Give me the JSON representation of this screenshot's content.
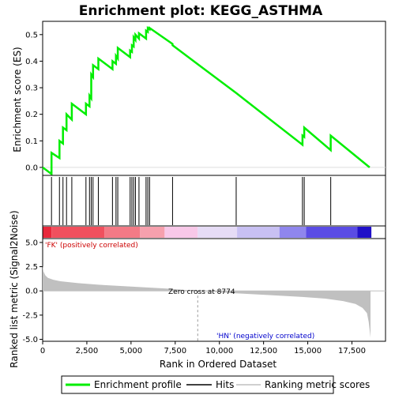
{
  "chart_data": {
    "type": "line",
    "title": "Enrichment plot: KEGG_ASTHMA",
    "top_panel": {
      "ylabel": "Enrichment score (ES)",
      "ylim": [
        -0.03,
        0.55
      ],
      "yticks": [
        0.0,
        0.1,
        0.2,
        0.3,
        0.4,
        0.5
      ],
      "ytick_labels": [
        "0.0",
        "0.1",
        "0.2",
        "0.3",
        "0.4",
        "0.5"
      ],
      "series_color": "#00ee00",
      "x": [
        0,
        500,
        500,
        950,
        950,
        1150,
        1150,
        1350,
        1350,
        1650,
        1650,
        2450,
        2450,
        2650,
        2650,
        2750,
        2750,
        2850,
        2850,
        3150,
        3150,
        3950,
        3950,
        4150,
        4150,
        4250,
        4250,
        4950,
        4950,
        5050,
        5050,
        5150,
        5150,
        5250,
        5250,
        5450,
        5450,
        5850,
        5850,
        5950,
        5950,
        6050,
        6050,
        7350,
        7350,
        10950,
        10950,
        14700,
        14700,
        14800,
        14800,
        16300,
        16300,
        18500
      ],
      "y": [
        0.0,
        -0.025,
        0.055,
        0.035,
        0.1,
        0.09,
        0.15,
        0.14,
        0.2,
        0.18,
        0.24,
        0.2,
        0.24,
        0.23,
        0.27,
        0.26,
        0.35,
        0.34,
        0.385,
        0.37,
        0.41,
        0.37,
        0.4,
        0.39,
        0.42,
        0.41,
        0.45,
        0.415,
        0.44,
        0.435,
        0.46,
        0.455,
        0.49,
        0.48,
        0.5,
        0.485,
        0.505,
        0.485,
        0.515,
        0.51,
        0.525,
        0.52,
        0.525,
        0.465,
        0.46,
        0.28,
        0.28,
        0.085,
        0.12,
        0.115,
        0.15,
        0.065,
        0.12,
        0.0
      ]
    },
    "hits": [
      500,
      950,
      1150,
      1350,
      1650,
      2450,
      2650,
      2750,
      2850,
      3150,
      3950,
      4150,
      4250,
      4950,
      5050,
      5150,
      5250,
      5450,
      5850,
      5950,
      6050,
      7350,
      10950,
      14700,
      14800,
      16300
    ],
    "heatmap_bar": {
      "pos_label": "'FK' (positively correlated)",
      "neg_label": "'HN' (negatively correlated)",
      "pos_color": "#cc0000",
      "neg_color": "#0000cc",
      "segments": [
        {
          "from": 0,
          "to": 500,
          "color": "#e8283b"
        },
        {
          "from": 500,
          "to": 3500,
          "color": "#f0505e"
        },
        {
          "from": 3500,
          "to": 5500,
          "color": "#f37a86"
        },
        {
          "from": 5500,
          "to": 6900,
          "color": "#f6a0ad"
        },
        {
          "from": 6900,
          "to": 8774,
          "color": "#f8c8e8"
        },
        {
          "from": 8774,
          "to": 11000,
          "color": "#e6dcf6"
        },
        {
          "from": 11000,
          "to": 13400,
          "color": "#c8c0f3"
        },
        {
          "from": 13400,
          "to": 14900,
          "color": "#8f86ed"
        },
        {
          "from": 14900,
          "to": 17800,
          "color": "#5a4ce4"
        },
        {
          "from": 17800,
          "to": 18600,
          "color": "#2010c8"
        }
      ]
    },
    "bottom_panel": {
      "ylabel": "Ranked list metric (Signal2Noise)",
      "ylim": [
        -5.2,
        5.4
      ],
      "yticks": [
        -5.0,
        -2.5,
        0.0,
        2.5,
        5.0
      ],
      "ytick_labels": [
        "-5.0",
        "-2.5",
        "0.0",
        "2.5",
        "5.0"
      ],
      "zero_cross_label": "Zero cross at 8774",
      "zero_cross": 8774,
      "metric_x": [
        0,
        50,
        150,
        300,
        600,
        1000,
        2000,
        3500,
        5000,
        7000,
        8774,
        10500,
        12500,
        14500,
        16000,
        17000,
        17700,
        18100,
        18350,
        18450,
        18550
      ],
      "metric_y": [
        2.6,
        2.0,
        1.6,
        1.35,
        1.15,
        1.0,
        0.8,
        0.6,
        0.45,
        0.25,
        0.0,
        -0.2,
        -0.4,
        -0.6,
        -0.8,
        -1.05,
        -1.35,
        -1.75,
        -2.3,
        -3.2,
        -4.8
      ]
    },
    "xaxis": {
      "xlabel": "Rank in Ordered Dataset",
      "xlim": [
        0,
        19400
      ],
      "xticks": [
        0,
        2500,
        5000,
        7500,
        10000,
        12500,
        15000,
        17500
      ],
      "xtick_labels": [
        "0",
        "2,500",
        "5,000",
        "7,500",
        "10,000",
        "12,500",
        "15,000",
        "17,500"
      ]
    },
    "legend": [
      {
        "label": "Enrichment profile",
        "color": "#00ee00"
      },
      {
        "label": "Hits",
        "color": "#000000"
      },
      {
        "label": "Ranking metric scores",
        "color": "#c0c0c0"
      }
    ]
  }
}
